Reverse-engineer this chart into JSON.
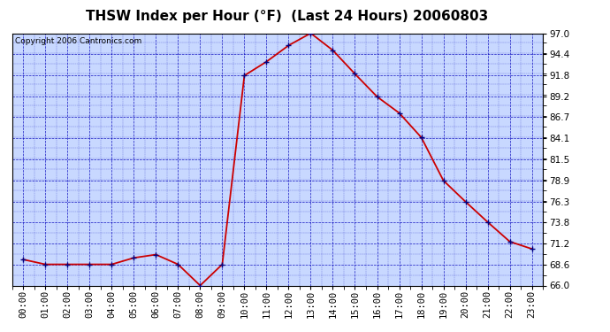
{
  "title": "THSW Index per Hour (°F)  (Last 24 Hours) 20060803",
  "copyright": "Copyright 2006 Cantronics.com",
  "hours": [
    "00:00",
    "01:00",
    "02:00",
    "03:00",
    "04:00",
    "05:00",
    "06:00",
    "07:00",
    "08:00",
    "09:00",
    "10:00",
    "11:00",
    "12:00",
    "13:00",
    "14:00",
    "15:00",
    "16:00",
    "17:00",
    "18:00",
    "19:00",
    "20:00",
    "21:00",
    "22:00",
    "23:00"
  ],
  "values": [
    69.2,
    68.6,
    68.6,
    68.6,
    68.6,
    69.4,
    69.8,
    68.6,
    66.0,
    68.6,
    91.8,
    93.5,
    95.5,
    97.0,
    94.9,
    92.0,
    89.2,
    87.2,
    84.2,
    78.9,
    76.3,
    73.8,
    71.4,
    70.5
  ],
  "ylim": [
    66.0,
    97.0
  ],
  "yticks": [
    66.0,
    68.6,
    71.2,
    73.8,
    76.3,
    78.9,
    81.5,
    84.1,
    86.7,
    89.2,
    91.8,
    94.4,
    97.0
  ],
  "line_color": "#cc0000",
  "marker_color": "#000080",
  "plot_bg": "#c8d8ff",
  "fig_bg": "#ffffff",
  "grid_color": "#0000bb",
  "title_color": "#000000",
  "title_fontsize": 11,
  "copyright_fontsize": 6.5,
  "tick_fontsize": 7.5,
  "ytick_fontsize": 7.5
}
